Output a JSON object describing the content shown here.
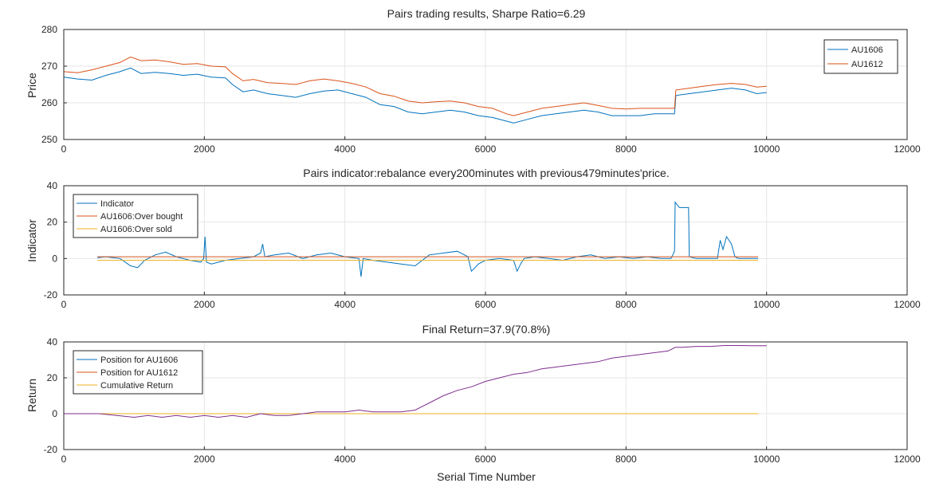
{
  "figure": {
    "xlabel": "Serial Time Number"
  },
  "chart_data": [
    {
      "type": "line",
      "title": "Pairs trading results, Sharpe Ratio=6.29",
      "xlabel": "",
      "ylabel": "Price",
      "xlim": [
        0,
        12000
      ],
      "ylim": [
        250,
        280
      ],
      "xticks": [
        "0",
        "2000",
        "4000",
        "6000",
        "8000",
        "10000",
        "12000"
      ],
      "yticks": [
        "250",
        "260",
        "270",
        "280"
      ],
      "grid": true,
      "legend_position": "top-right",
      "series": [
        {
          "name": "AU1606",
          "color": "#0072BD",
          "x": [
            0,
            200,
            400,
            600,
            800,
            950,
            1100,
            1300,
            1500,
            1700,
            1900,
            2100,
            2300,
            2400,
            2550,
            2700,
            2900,
            3100,
            3300,
            3500,
            3700,
            3900,
            4100,
            4300,
            4500,
            4700,
            4900,
            5100,
            5300,
            5500,
            5700,
            5900,
            6100,
            6300,
            6400,
            6600,
            6800,
            7000,
            7200,
            7400,
            7600,
            7800,
            8000,
            8200,
            8400,
            8690,
            8710,
            8900,
            9100,
            9300,
            9500,
            9700,
            9860,
            10000
          ],
          "y": [
            267,
            266.5,
            266.2,
            267.5,
            268.5,
            269.5,
            268,
            268.3,
            268,
            267.5,
            267.8,
            267,
            266.8,
            265,
            263,
            263.5,
            262.5,
            262,
            261.5,
            262.5,
            263.2,
            263.5,
            262.5,
            261.5,
            259.5,
            259,
            257.5,
            257,
            257.5,
            258,
            257.5,
            256.5,
            256,
            255,
            254.5,
            255.5,
            256.5,
            257,
            257.5,
            258,
            257.5,
            256.5,
            256.5,
            256.5,
            257,
            257,
            262,
            262.5,
            263,
            263.5,
            264,
            263.5,
            262.5,
            262.8
          ]
        },
        {
          "name": "AU1612",
          "color": "#D95319",
          "x": [
            0,
            200,
            400,
            600,
            800,
            950,
            1100,
            1300,
            1500,
            1700,
            1900,
            2100,
            2300,
            2400,
            2550,
            2700,
            2900,
            3100,
            3300,
            3500,
            3700,
            3900,
            4100,
            4300,
            4500,
            4700,
            4900,
            5100,
            5300,
            5500,
            5700,
            5900,
            6100,
            6300,
            6400,
            6600,
            6800,
            7000,
            7200,
            7400,
            7600,
            7800,
            8000,
            8200,
            8400,
            8690,
            8710,
            8900,
            9100,
            9300,
            9500,
            9700,
            9860,
            10000
          ],
          "y": [
            268.5,
            268.2,
            269,
            270,
            271,
            272.5,
            271.5,
            271.7,
            271.2,
            270.5,
            270.7,
            270,
            269.8,
            268,
            266,
            266.4,
            265.5,
            265.3,
            265,
            266,
            266.5,
            266,
            265.3,
            264.3,
            262.5,
            261.8,
            260.5,
            260,
            260.3,
            260.5,
            260,
            259,
            258.5,
            257,
            256.5,
            257.5,
            258.5,
            259,
            259.5,
            260,
            259.3,
            258.5,
            258.3,
            258.5,
            258.5,
            258.5,
            263.5,
            264,
            264.5,
            265,
            265.3,
            265,
            264.3,
            264.5
          ]
        }
      ]
    },
    {
      "type": "line",
      "title": "Pairs indicator:rebalance every200minutes with previous479minutes'price.",
      "xlabel": "",
      "ylabel": "Indicator",
      "xlim": [
        0,
        12000
      ],
      "ylim": [
        -20,
        40
      ],
      "xticks": [
        "0",
        "2000",
        "4000",
        "6000",
        "8000",
        "10000",
        "12000"
      ],
      "yticks": [
        "-20",
        "0",
        "20",
        "40"
      ],
      "grid": true,
      "legend_position": "top-left",
      "series": [
        {
          "name": "Indicator",
          "color": "#0072BD",
          "x": [
            479,
            600,
            800,
            950,
            1050,
            1150,
            1300,
            1450,
            1600,
            1800,
            1950,
            1990,
            2010,
            2030,
            2100,
            2300,
            2500,
            2700,
            2800,
            2830,
            2860,
            3000,
            3200,
            3400,
            3600,
            3800,
            4000,
            4200,
            4230,
            4260,
            4400,
            4600,
            4800,
            5000,
            5200,
            5400,
            5600,
            5750,
            5800,
            5900,
            6000,
            6200,
            6400,
            6450,
            6500,
            6550,
            6700,
            6900,
            7100,
            7300,
            7500,
            7700,
            7900,
            8100,
            8300,
            8500,
            8640,
            8690,
            8700,
            8760,
            8890,
            8900,
            9000,
            9200,
            9300,
            9340,
            9380,
            9430,
            9500,
            9550,
            9600,
            9800,
            9880
          ],
          "y": [
            0.5,
            1,
            0,
            -4,
            -5,
            -1,
            2,
            3.5,
            1,
            -1,
            -2,
            0,
            12,
            -2,
            -3,
            -1,
            0,
            1,
            3,
            8,
            1,
            2,
            3,
            0,
            2,
            3,
            1,
            0,
            -10,
            0,
            -1,
            -2,
            -3,
            -4,
            2,
            3,
            4,
            1,
            -7,
            -3,
            -1,
            0,
            -1,
            -7,
            -3,
            0,
            1,
            0,
            -1,
            1,
            2,
            0,
            1,
            0,
            1,
            0,
            0,
            4,
            31,
            28,
            28,
            1,
            0,
            0,
            0,
            10,
            5,
            12,
            8,
            1,
            0,
            0,
            0
          ]
        },
        {
          "name": "AU1606:Over bought",
          "color": "#D95319",
          "x": [
            479,
            9880
          ],
          "y": [
            1,
            1
          ]
        },
        {
          "name": "AU1606:Over sold",
          "color": "#EDB120",
          "x": [
            479,
            9880
          ],
          "y": [
            -1,
            -1
          ]
        }
      ]
    },
    {
      "type": "line",
      "title": "Final Return=37.9(70.8%)",
      "xlabel": "Serial Time Number",
      "ylabel": "Return",
      "xlim": [
        0,
        12000
      ],
      "ylim": [
        -20,
        40
      ],
      "xticks": [
        "0",
        "2000",
        "4000",
        "6000",
        "8000",
        "10000",
        "12000"
      ],
      "yticks": [
        "-20",
        "0",
        "20",
        "40"
      ],
      "grid": true,
      "legend_position": "top-left",
      "series": [
        {
          "name": "Position for AU1606",
          "color": "#0072BD",
          "x": [
            479,
            2000,
            4000,
            6000,
            8000,
            9880
          ],
          "y": [
            0,
            0,
            0,
            0,
            0,
            0
          ]
        },
        {
          "name": "Position for AU1612",
          "color": "#D95319",
          "x": [
            479,
            2000,
            4000,
            6000,
            8000,
            9880
          ],
          "y": [
            0,
            0,
            0,
            0,
            0,
            0
          ]
        },
        {
          "name": "Cumulative Return",
          "color": "#EDB120",
          "x": [
            479,
            2000,
            4000,
            6000,
            8000,
            9880
          ],
          "y": [
            0,
            0,
            0,
            0,
            0,
            0
          ]
        },
        {
          "name": "",
          "color": "#7E2F8E",
          "x": [
            0,
            500,
            1000,
            1200,
            1400,
            1600,
            1800,
            2000,
            2200,
            2400,
            2600,
            2800,
            3000,
            3200,
            3400,
            3600,
            3800,
            4000,
            4200,
            4400,
            4600,
            4800,
            5000,
            5200,
            5400,
            5600,
            5800,
            6000,
            6200,
            6400,
            6600,
            6800,
            7000,
            7200,
            7400,
            7600,
            7800,
            8000,
            8200,
            8400,
            8600,
            8700,
            8800,
            9000,
            9200,
            9400,
            9600,
            9800,
            10000
          ],
          "y": [
            0,
            0,
            -2,
            -1,
            -2,
            -1,
            -2,
            -1,
            -2,
            -1,
            -2,
            0,
            -1,
            -1,
            0,
            1,
            1,
            1,
            2,
            1,
            1,
            1,
            2,
            6,
            10,
            13,
            15,
            18,
            20,
            22,
            23,
            25,
            26,
            27,
            28,
            29,
            31,
            32,
            33,
            34,
            35,
            37,
            37,
            37.5,
            37.5,
            38,
            38,
            37.9,
            37.9
          ]
        }
      ]
    }
  ]
}
